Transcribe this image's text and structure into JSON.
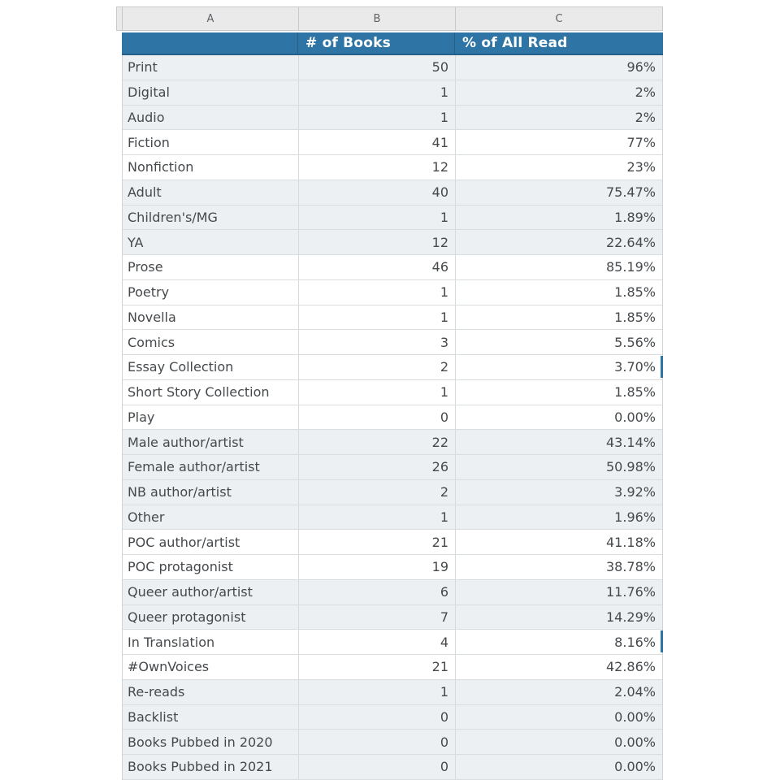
{
  "colors": {
    "header_blue": "#2e75a5",
    "header_blue_border": "#26608a",
    "shaded_row": "#edf0f2",
    "letters_bg": "#eaeaea",
    "grid_line": "#d9dde0",
    "cell_text": "#45494c",
    "header_text": "#ffffff"
  },
  "column_letters": {
    "a": "A",
    "b": "B",
    "c": "C"
  },
  "header": {
    "label_a": "",
    "label_b": "# of Books",
    "label_c": "% of All Read"
  },
  "table": {
    "rows": [
      {
        "label": "Print",
        "books": "50",
        "pct": "96%",
        "shaded": true,
        "edge_mark": false
      },
      {
        "label": "Digital",
        "books": "1",
        "pct": "2%",
        "shaded": true,
        "edge_mark": false
      },
      {
        "label": "Audio",
        "books": "1",
        "pct": "2%",
        "shaded": true,
        "edge_mark": false
      },
      {
        "label": "Fiction",
        "books": "41",
        "pct": "77%",
        "shaded": false,
        "edge_mark": false
      },
      {
        "label": "Nonfiction",
        "books": "12",
        "pct": "23%",
        "shaded": false,
        "edge_mark": false
      },
      {
        "label": "Adult",
        "books": "40",
        "pct": "75.47%",
        "shaded": true,
        "edge_mark": false
      },
      {
        "label": "Children's/MG",
        "books": "1",
        "pct": "1.89%",
        "shaded": true,
        "edge_mark": false
      },
      {
        "label": "YA",
        "books": "12",
        "pct": "22.64%",
        "shaded": true,
        "edge_mark": false
      },
      {
        "label": "Prose",
        "books": "46",
        "pct": "85.19%",
        "shaded": false,
        "edge_mark": false
      },
      {
        "label": "Poetry",
        "books": "1",
        "pct": "1.85%",
        "shaded": false,
        "edge_mark": false
      },
      {
        "label": "Novella",
        "books": "1",
        "pct": "1.85%",
        "shaded": false,
        "edge_mark": false
      },
      {
        "label": "Comics",
        "books": "3",
        "pct": "5.56%",
        "shaded": false,
        "edge_mark": false
      },
      {
        "label": "Essay Collection",
        "books": "2",
        "pct": "3.70%",
        "shaded": false,
        "edge_mark": true
      },
      {
        "label": "Short Story Collection",
        "books": "1",
        "pct": "1.85%",
        "shaded": false,
        "edge_mark": false
      },
      {
        "label": "Play",
        "books": "0",
        "pct": "0.00%",
        "shaded": false,
        "edge_mark": false
      },
      {
        "label": "Male author/artist",
        "books": "22",
        "pct": "43.14%",
        "shaded": true,
        "edge_mark": false
      },
      {
        "label": "Female author/artist",
        "books": "26",
        "pct": "50.98%",
        "shaded": true,
        "edge_mark": false
      },
      {
        "label": "NB author/artist",
        "books": "2",
        "pct": "3.92%",
        "shaded": true,
        "edge_mark": false
      },
      {
        "label": "Other",
        "books": "1",
        "pct": "1.96%",
        "shaded": true,
        "edge_mark": false
      },
      {
        "label": "POC author/artist",
        "books": "21",
        "pct": "41.18%",
        "shaded": false,
        "edge_mark": false
      },
      {
        "label": "POC protagonist",
        "books": "19",
        "pct": "38.78%",
        "shaded": false,
        "edge_mark": false
      },
      {
        "label": "Queer author/artist",
        "books": "6",
        "pct": "11.76%",
        "shaded": true,
        "edge_mark": false
      },
      {
        "label": "Queer protagonist",
        "books": "7",
        "pct": "14.29%",
        "shaded": true,
        "edge_mark": false
      },
      {
        "label": "In Translation",
        "books": "4",
        "pct": "8.16%",
        "shaded": false,
        "edge_mark": true
      },
      {
        "label": "#OwnVoices",
        "books": "21",
        "pct": "42.86%",
        "shaded": false,
        "edge_mark": false
      },
      {
        "label": "Re-reads",
        "books": "1",
        "pct": "2.04%",
        "shaded": true,
        "edge_mark": false
      },
      {
        "label": "Backlist",
        "books": "0",
        "pct": "0.00%",
        "shaded": true,
        "edge_mark": false
      },
      {
        "label": "Books Pubbed in 2020",
        "books": "0",
        "pct": "0.00%",
        "shaded": true,
        "edge_mark": false
      },
      {
        "label": "Books Pubbed in 2021",
        "books": "0",
        "pct": "0.00%",
        "shaded": true,
        "edge_mark": false
      }
    ]
  }
}
